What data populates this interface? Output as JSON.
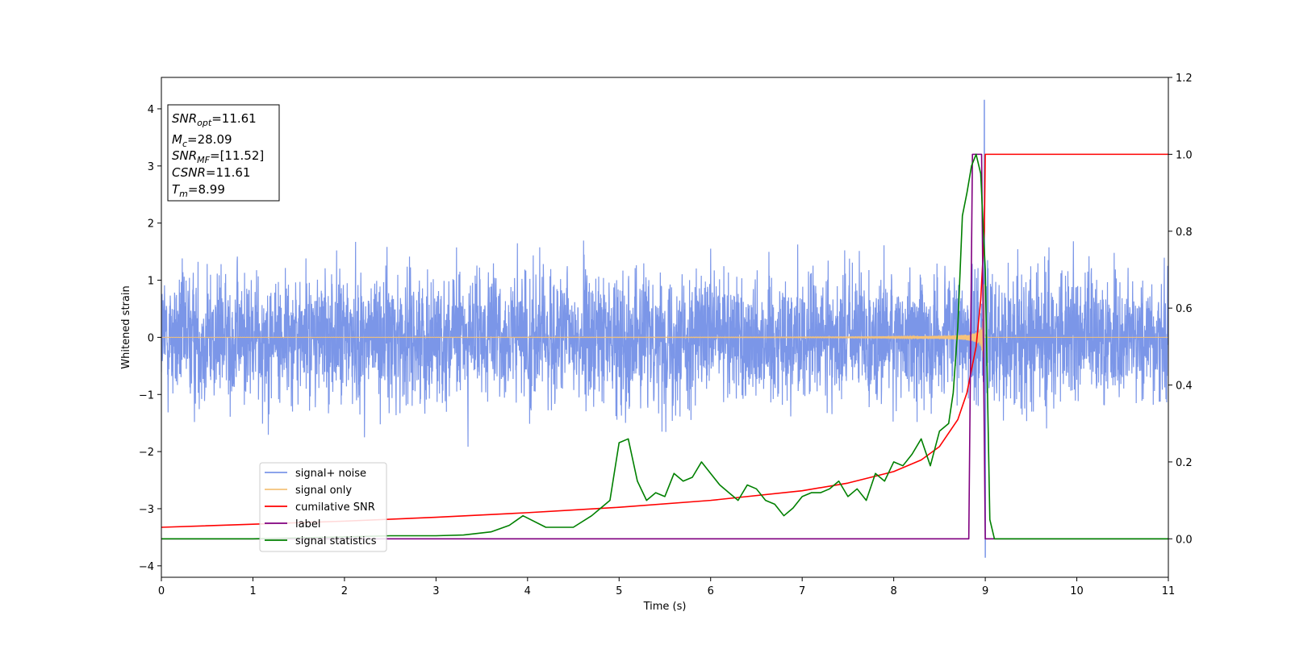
{
  "chart_data": {
    "type": "line",
    "title": "",
    "xlabel": "Time (s)",
    "ylabel": "Whitened strain",
    "xlim": [
      0,
      11
    ],
    "ylim": [
      -4.2,
      4.55
    ],
    "y2lim": [
      -0.1,
      1.2
    ],
    "grid": false,
    "legend_position": "lower-left",
    "x_ticks": [
      0,
      1,
      2,
      3,
      4,
      5,
      6,
      7,
      8,
      9,
      10,
      11
    ],
    "y_ticks": [
      -4,
      -3,
      -2,
      -1,
      0,
      1,
      2,
      3,
      4
    ],
    "y2_ticks": [
      0.0,
      0.2,
      0.4,
      0.6,
      0.8,
      1.0,
      1.2
    ],
    "annotation": {
      "snr_opt": {
        "symbol": "SNR",
        "sub": "opt",
        "value": "=11.61"
      },
      "mc": {
        "symbol": "M",
        "sub": "c",
        "value": "=28.09"
      },
      "snr_mf": {
        "symbol": "SNR",
        "sub": "MF",
        "value": "=[11.52]"
      },
      "csnr": {
        "symbol": "CSNR",
        "value": "=11.61"
      },
      "tm": {
        "symbol": "T",
        "sub": "m",
        "value": "=8.99"
      }
    },
    "series": [
      {
        "name": "signal+ noise",
        "axis": "left",
        "color": "#7b96e8",
        "noise_band": 1.3,
        "peak": {
          "x": 8.99,
          "y": 4.15
        },
        "trough": {
          "x": 9.0,
          "y": -3.85
        }
      },
      {
        "name": "signal only",
        "axis": "left",
        "color": "#f5c27a",
        "chirp_end": 8.99,
        "max_amplitude": 1.0
      },
      {
        "name": "cumilative SNR",
        "axis": "right",
        "color": "#ff0000",
        "x": [
          0,
          1,
          2,
          3,
          4,
          5,
          6,
          7,
          7.5,
          8,
          8.3,
          8.5,
          8.7,
          8.8,
          8.9,
          8.95,
          8.99,
          9.0,
          11
        ],
        "y": [
          0.03,
          0.038,
          0.046,
          0.056,
          0.068,
          0.082,
          0.1,
          0.125,
          0.145,
          0.175,
          0.205,
          0.24,
          0.31,
          0.38,
          0.5,
          0.62,
          0.8,
          1.0,
          1.0
        ]
      },
      {
        "name": "label",
        "axis": "right",
        "color": "#800080",
        "x": [
          0,
          8.82,
          8.86,
          8.96,
          9.0,
          11
        ],
        "y": [
          0,
          0,
          1,
          1,
          0,
          0
        ]
      },
      {
        "name": "signal statistics",
        "axis": "right",
        "color": "#008000",
        "x": [
          0,
          1,
          2,
          2.5,
          3,
          3.3,
          3.6,
          3.8,
          3.95,
          4.2,
          4.5,
          4.7,
          4.9,
          5.0,
          5.1,
          5.2,
          5.3,
          5.4,
          5.5,
          5.6,
          5.7,
          5.8,
          5.9,
          6.0,
          6.1,
          6.2,
          6.3,
          6.4,
          6.5,
          6.6,
          6.7,
          6.8,
          6.9,
          7.0,
          7.1,
          7.2,
          7.3,
          7.4,
          7.5,
          7.6,
          7.7,
          7.8,
          7.9,
          8.0,
          8.1,
          8.2,
          8.3,
          8.4,
          8.5,
          8.6,
          8.65,
          8.7,
          8.75,
          8.8,
          8.85,
          8.9,
          8.95,
          9.0,
          9.05,
          9.1,
          11
        ],
        "y": [
          0.0,
          0.0,
          0.005,
          0.008,
          0.008,
          0.01,
          0.018,
          0.035,
          0.06,
          0.03,
          0.03,
          0.06,
          0.1,
          0.25,
          0.26,
          0.15,
          0.1,
          0.12,
          0.11,
          0.17,
          0.15,
          0.16,
          0.2,
          0.17,
          0.14,
          0.12,
          0.1,
          0.14,
          0.13,
          0.1,
          0.09,
          0.06,
          0.08,
          0.11,
          0.12,
          0.12,
          0.13,
          0.15,
          0.11,
          0.13,
          0.1,
          0.17,
          0.15,
          0.2,
          0.19,
          0.22,
          0.26,
          0.19,
          0.28,
          0.3,
          0.38,
          0.55,
          0.84,
          0.9,
          0.97,
          1.0,
          0.95,
          0.7,
          0.05,
          0.0,
          0.0
        ]
      }
    ]
  }
}
